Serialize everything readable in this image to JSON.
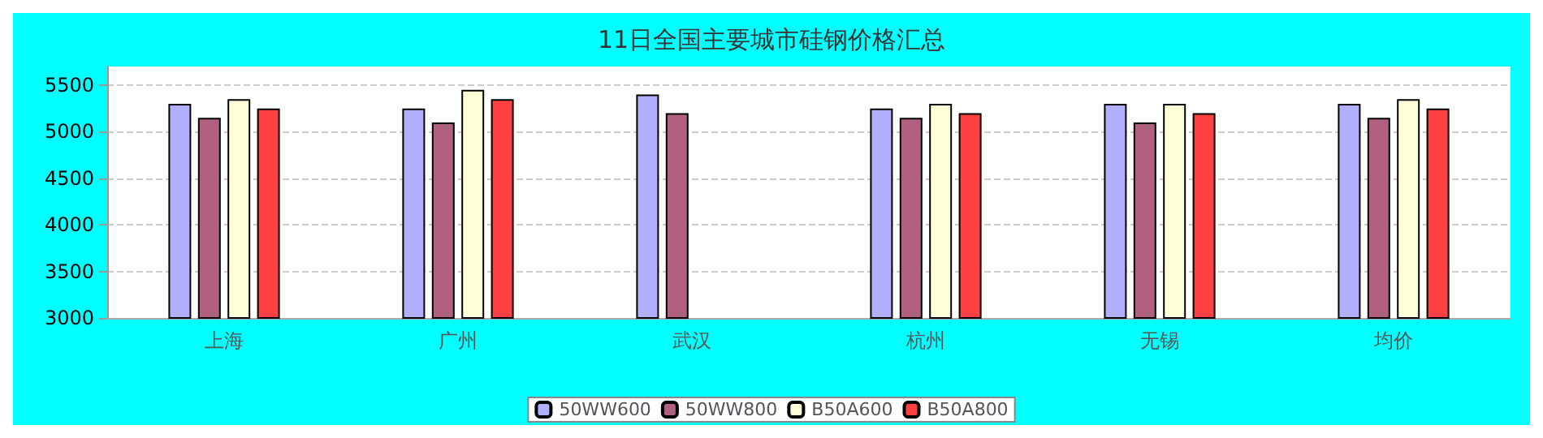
{
  "chart_data": {
    "type": "bar",
    "title": "11日全国主要城市硅钢价格汇总",
    "categories": [
      "上海",
      "广州",
      "武汉",
      "杭州",
      "无锡",
      "均价"
    ],
    "series": [
      {
        "name": "50WW600",
        "color": "#b0b0ff",
        "values": [
          5300,
          5250,
          5400,
          5250,
          5300,
          5300
        ]
      },
      {
        "name": "50WW800",
        "color": "#b06080",
        "values": [
          5150,
          5100,
          5200,
          5150,
          5100,
          5150
        ]
      },
      {
        "name": "B50A600",
        "color": "#ffffd8",
        "values": [
          5350,
          5450,
          null,
          5300,
          5300,
          5350
        ]
      },
      {
        "name": "B50A800",
        "color": "#ff4040",
        "values": [
          5250,
          5350,
          null,
          5200,
          5200,
          5250
        ]
      }
    ],
    "ylim": [
      3000,
      5700
    ],
    "yticks": [
      3000,
      3500,
      4000,
      4500,
      5000,
      5500
    ],
    "grid": "y",
    "legend": "bottom"
  }
}
